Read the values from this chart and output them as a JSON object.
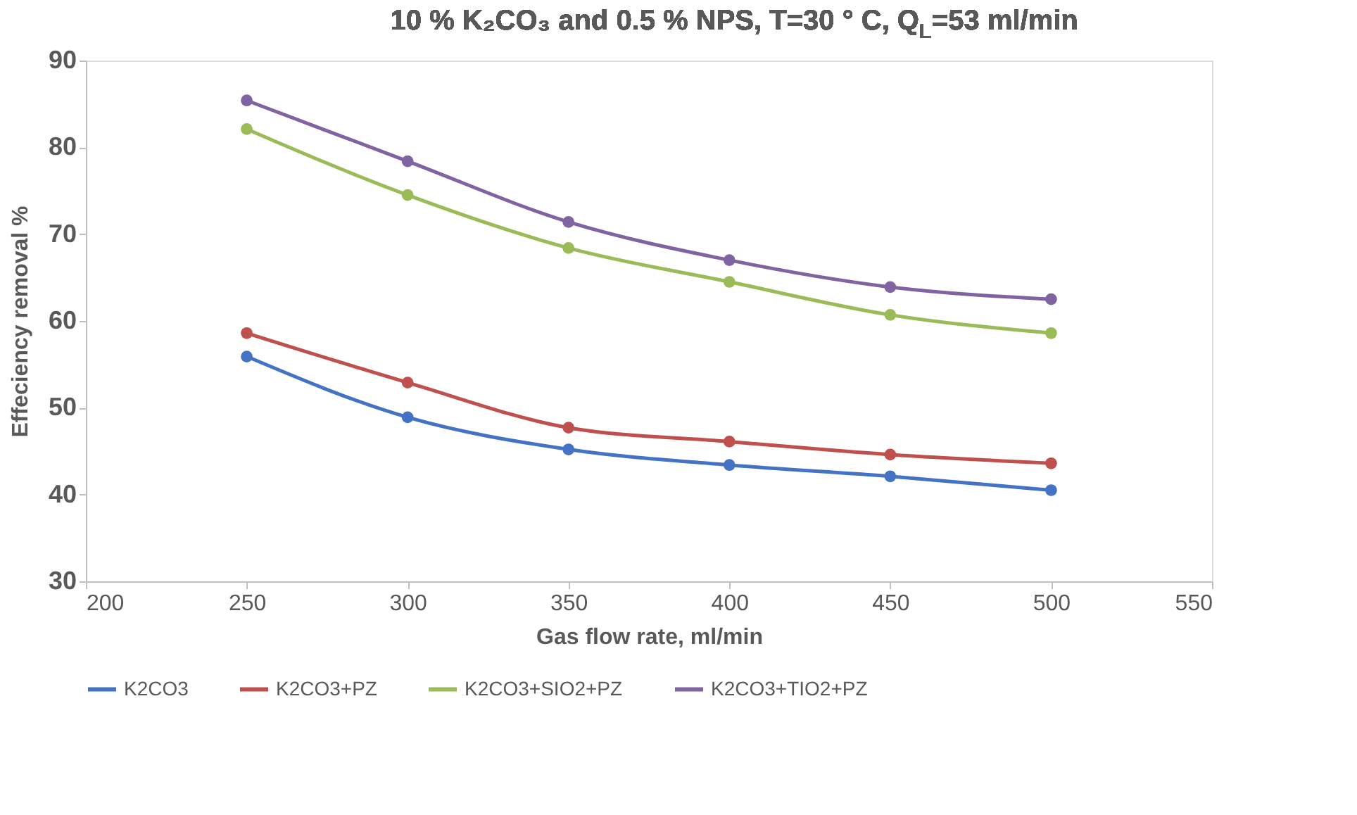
{
  "chart_data": {
    "type": "line",
    "title": "10 % K₂CO₃ and 0.5 % NPS, T=30 ° C, Q$_{L}$=53 ml/min",
    "xlabel": "Gas flow rate, ml/min",
    "ylabel": "Effeciency removal %",
    "x": [
      250,
      300,
      350,
      400,
      450,
      500
    ],
    "series": [
      {
        "name": "K2CO3",
        "color": "#4472c4",
        "values": [
          55.9,
          48.9,
          45.2,
          43.4,
          42.1,
          40.5
        ]
      },
      {
        "name": "K2CO3+PZ",
        "color": "#c0504d",
        "values": [
          58.6,
          52.9,
          47.7,
          46.1,
          44.6,
          43.6
        ]
      },
      {
        "name": "K2CO3+SIO2+PZ",
        "color": "#9bbb59",
        "values": [
          82.1,
          74.5,
          68.4,
          64.5,
          60.7,
          58.6
        ]
      },
      {
        "name": "K2CO3+TIO2+PZ",
        "color": "#8064a2",
        "values": [
          85.4,
          78.4,
          71.4,
          67.0,
          63.9,
          62.5
        ]
      }
    ],
    "xlim": [
      200,
      550
    ],
    "xticks": [
      200,
      250,
      300,
      350,
      400,
      450,
      500,
      550
    ],
    "ylim": [
      30,
      90
    ],
    "yticks": [
      30,
      40,
      50,
      60,
      70,
      80,
      90
    ],
    "grid": false,
    "legend": "bottom",
    "marker": "circle",
    "line_style": "solid"
  }
}
